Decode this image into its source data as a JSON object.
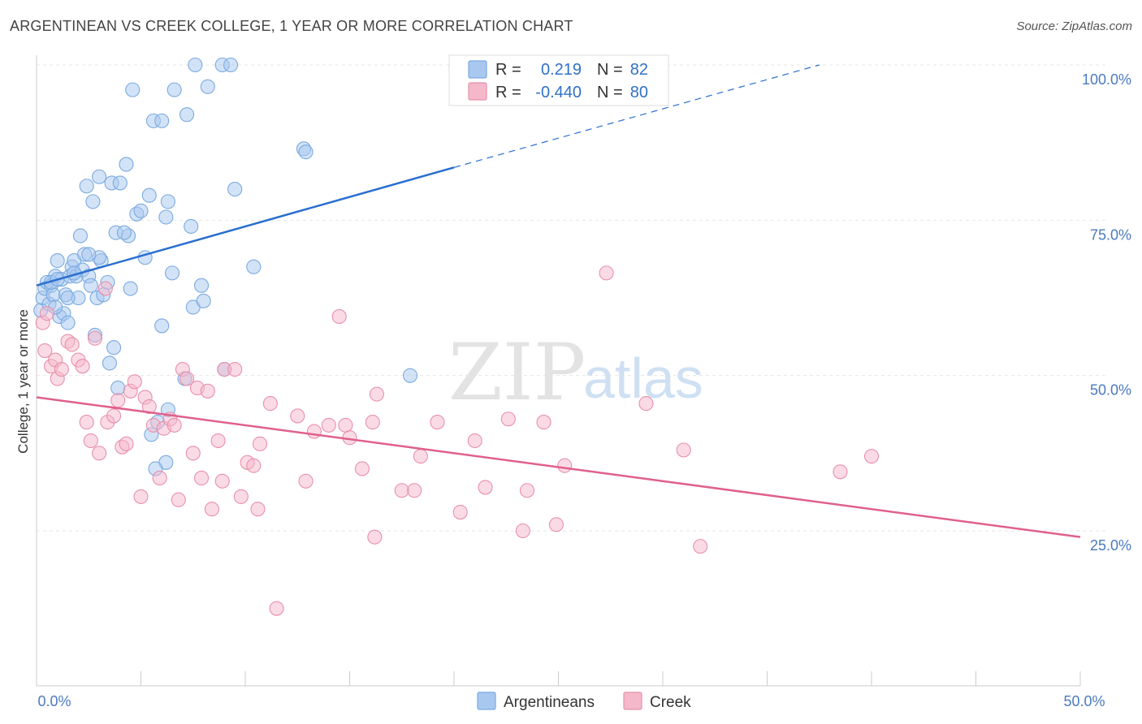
{
  "title": "ARGENTINEAN VS CREEK COLLEGE, 1 YEAR OR MORE CORRELATION CHART",
  "source": "Source: ZipAtlas.com",
  "watermark": {
    "part1": "ZIP",
    "part2": "atlas"
  },
  "legend": {
    "r_label": "R =",
    "n_label": "N =",
    "rows": [
      {
        "r": "0.219",
        "n": "82",
        "color": "#a8c8f0"
      },
      {
        "r": "-0.440",
        "n": "80",
        "color": "#f5b8cb"
      }
    ]
  },
  "bottom_legend": [
    "Argentineans",
    "Creek"
  ],
  "chart_data": {
    "type": "scatter",
    "title": "ARGENTINEAN VS CREEK COLLEGE, 1 YEAR OR MORE CORRELATION CHART",
    "xlabel": "",
    "ylabel": "College, 1 year or more",
    "xlim": [
      0,
      50
    ],
    "ylim": [
      0,
      103
    ],
    "x_ticks": [
      {
        "value": 0,
        "label": "0.0%"
      },
      {
        "value": 50,
        "label": "50.0%"
      }
    ],
    "y_ticks": [
      {
        "value": 25,
        "label": "25.0%"
      },
      {
        "value": 50,
        "label": "50.0%"
      },
      {
        "value": 75,
        "label": "75.0%"
      },
      {
        "value": 100,
        "label": "100.0%"
      }
    ],
    "grid": true,
    "legend_position": "top-center",
    "series": [
      {
        "name": "Argentineans",
        "color": "#7aaae0",
        "fill": "#a8c8f0",
        "r": 0.219,
        "n": 82,
        "trend": {
          "x0": 0,
          "y0": 64.5,
          "x1": 20,
          "y1": 83.5,
          "dash_x1": 37.5,
          "dash_y1": 100
        },
        "points": [
          [
            0.2,
            60.5
          ],
          [
            0.3,
            62.5
          ],
          [
            0.4,
            64
          ],
          [
            0.5,
            65
          ],
          [
            0.6,
            61.5
          ],
          [
            0.7,
            64.5
          ],
          [
            0.8,
            63
          ],
          [
            0.9,
            66
          ],
          [
            1.0,
            68.5
          ],
          [
            1.1,
            59.5
          ],
          [
            1.2,
            65.5
          ],
          [
            1.3,
            60
          ],
          [
            1.4,
            63
          ],
          [
            1.5,
            58.5
          ],
          [
            1.6,
            66
          ],
          [
            1.7,
            67.5
          ],
          [
            1.8,
            68.5
          ],
          [
            1.9,
            66
          ],
          [
            2.0,
            62.5
          ],
          [
            2.1,
            72.5
          ],
          [
            2.2,
            67
          ],
          [
            2.3,
            69.5
          ],
          [
            2.4,
            80.5
          ],
          [
            2.5,
            66
          ],
          [
            2.6,
            64.5
          ],
          [
            2.7,
            78
          ],
          [
            2.8,
            56.5
          ],
          [
            2.9,
            62.5
          ],
          [
            3.0,
            82
          ],
          [
            3.1,
            68.5
          ],
          [
            3.4,
            65
          ],
          [
            3.5,
            52
          ],
          [
            3.6,
            81
          ],
          [
            3.7,
            54.5
          ],
          [
            3.8,
            73
          ],
          [
            3.9,
            48
          ],
          [
            4.0,
            81
          ],
          [
            4.3,
            84
          ],
          [
            4.5,
            64
          ],
          [
            4.4,
            72.5
          ],
          [
            4.6,
            96
          ],
          [
            4.8,
            76
          ],
          [
            5.2,
            69
          ],
          [
            5.4,
            79
          ],
          [
            5.6,
            91
          ],
          [
            5.0,
            76.5
          ],
          [
            6.0,
            91
          ],
          [
            6.2,
            75.5
          ],
          [
            6.3,
            78
          ],
          [
            6.5,
            66.5
          ],
          [
            6.6,
            96
          ],
          [
            6.0,
            58
          ],
          [
            6.3,
            44.5
          ],
          [
            6.2,
            36
          ],
          [
            5.8,
            42.5
          ],
          [
            5.5,
            40.5
          ],
          [
            5.7,
            35
          ],
          [
            7.2,
            92
          ],
          [
            7.4,
            74
          ],
          [
            7.5,
            61
          ],
          [
            7.9,
            64.5
          ],
          [
            8.0,
            62
          ],
          [
            7.6,
            100
          ],
          [
            8.2,
            96.5
          ],
          [
            8.9,
            100
          ],
          [
            9.3,
            100
          ],
          [
            9.5,
            80
          ],
          [
            10.4,
            67.5
          ],
          [
            12.8,
            86.5
          ],
          [
            12.9,
            86
          ],
          [
            9.0,
            51
          ],
          [
            7.1,
            49.5
          ],
          [
            3.0,
            69
          ],
          [
            2.5,
            69.5
          ],
          [
            1.5,
            62.5
          ],
          [
            0.9,
            61
          ],
          [
            0.7,
            65
          ],
          [
            1.0,
            65.5
          ],
          [
            1.8,
            66.5
          ],
          [
            3.2,
            63
          ],
          [
            17.9,
            50
          ],
          [
            4.2,
            73
          ]
        ]
      },
      {
        "name": "Creek",
        "color": "#e890aa",
        "fill": "#f5b8cb",
        "r": -0.44,
        "n": 80,
        "trend": {
          "x0": 0,
          "y0": 46.5,
          "x1": 50,
          "y1": 24
        },
        "points": [
          [
            0.3,
            58.5
          ],
          [
            0.4,
            54
          ],
          [
            0.5,
            60
          ],
          [
            0.7,
            51.5
          ],
          [
            0.9,
            52.5
          ],
          [
            1.0,
            49.5
          ],
          [
            1.2,
            51
          ],
          [
            1.5,
            55.5
          ],
          [
            1.7,
            55
          ],
          [
            2.0,
            52.5
          ],
          [
            2.2,
            51.5
          ],
          [
            2.4,
            42.5
          ],
          [
            2.6,
            39.5
          ],
          [
            2.8,
            56
          ],
          [
            3.0,
            37.5
          ],
          [
            3.3,
            64
          ],
          [
            3.4,
            42.5
          ],
          [
            3.7,
            43.5
          ],
          [
            3.9,
            46
          ],
          [
            4.1,
            38.5
          ],
          [
            4.3,
            39
          ],
          [
            4.5,
            47.5
          ],
          [
            4.7,
            49
          ],
          [
            5.0,
            30.5
          ],
          [
            5.2,
            46.5
          ],
          [
            5.4,
            45
          ],
          [
            5.6,
            42
          ],
          [
            5.9,
            33.5
          ],
          [
            6.1,
            41.5
          ],
          [
            6.4,
            43
          ],
          [
            6.6,
            42
          ],
          [
            6.8,
            30
          ],
          [
            7.0,
            51
          ],
          [
            7.2,
            49.5
          ],
          [
            7.5,
            37.5
          ],
          [
            7.7,
            48
          ],
          [
            7.9,
            33.5
          ],
          [
            8.2,
            47.5
          ],
          [
            8.4,
            28.5
          ],
          [
            8.7,
            39.5
          ],
          [
            8.9,
            33
          ],
          [
            9.0,
            51
          ],
          [
            9.5,
            51
          ],
          [
            9.8,
            30.5
          ],
          [
            10.1,
            36
          ],
          [
            10.4,
            35.5
          ],
          [
            10.6,
            28.5
          ],
          [
            10.7,
            39
          ],
          [
            11.2,
            45.5
          ],
          [
            11.5,
            12.5
          ],
          [
            12.5,
            43.5
          ],
          [
            12.9,
            33
          ],
          [
            13.3,
            41
          ],
          [
            14.0,
            42
          ],
          [
            14.8,
            42
          ],
          [
            15.0,
            40
          ],
          [
            14.5,
            59.5
          ],
          [
            15.6,
            35
          ],
          [
            16.1,
            42.5
          ],
          [
            16.3,
            47
          ],
          [
            16.2,
            24
          ],
          [
            17.5,
            31.5
          ],
          [
            18.1,
            31.5
          ],
          [
            18.4,
            37
          ],
          [
            19.2,
            42.5
          ],
          [
            20.3,
            28
          ],
          [
            21.0,
            39.5
          ],
          [
            21.5,
            32
          ],
          [
            22.6,
            43
          ],
          [
            23.5,
            31.5
          ],
          [
            23.3,
            25
          ],
          [
            24.3,
            42.5
          ],
          [
            24.9,
            26
          ],
          [
            25.3,
            35.5
          ],
          [
            27.3,
            66.5
          ],
          [
            29.2,
            45.5
          ],
          [
            31.0,
            38
          ],
          [
            31.8,
            22.5
          ],
          [
            38.5,
            34.5
          ],
          [
            40.0,
            37
          ]
        ]
      }
    ]
  }
}
